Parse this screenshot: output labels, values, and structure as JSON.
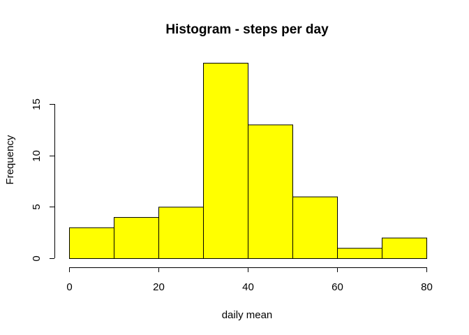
{
  "chart_data": {
    "type": "bar",
    "title": "Histogram - steps per day",
    "xlabel": "daily mean",
    "ylabel": "Frequency",
    "bins": [
      {
        "x0": 0,
        "x1": 10,
        "count": 3
      },
      {
        "x0": 10,
        "x1": 20,
        "count": 4
      },
      {
        "x0": 20,
        "x1": 30,
        "count": 5
      },
      {
        "x0": 30,
        "x1": 40,
        "count": 19
      },
      {
        "x0": 40,
        "x1": 50,
        "count": 13
      },
      {
        "x0": 50,
        "x1": 60,
        "count": 6
      },
      {
        "x0": 60,
        "x1": 70,
        "count": 1
      },
      {
        "x0": 70,
        "x1": 80,
        "count": 2
      }
    ],
    "xlim": [
      0,
      80
    ],
    "ylim": [
      0,
      19
    ],
    "xticks": [
      "0",
      "20",
      "40",
      "60",
      "80"
    ],
    "yticks": [
      "0",
      "5",
      "10",
      "15"
    ],
    "bar_color": "#FFFF00",
    "grid": false
  }
}
